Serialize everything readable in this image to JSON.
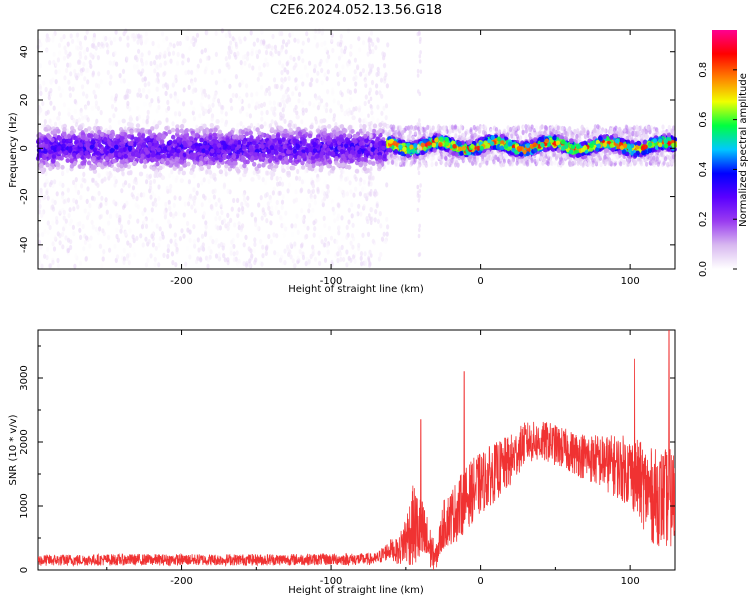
{
  "chart_data": [
    {
      "type": "heatmap",
      "title": "C2E6.2024.052.13.56.G18",
      "xlabel": "Height of straight line (km)",
      "ylabel": "Frequency (Hz)",
      "xlim": [
        -296,
        130
      ],
      "ylim": [
        -50,
        49
      ],
      "x_ticks": [
        -200,
        -100,
        0,
        100
      ],
      "x_tick_labels": [
        "-200",
        "-100",
        "0",
        "100"
      ],
      "y_ticks": [
        -40,
        -20,
        0,
        20,
        40
      ],
      "y_tick_labels": [
        "-40",
        "-20",
        "0",
        "20",
        "40"
      ],
      "colorbar": {
        "label": "Normalized spectral amplitude",
        "range": [
          0,
          0.96
        ],
        "ticks": [
          0,
          0.2,
          0.4,
          0.6,
          0.8
        ],
        "tick_labels": [
          "0.0",
          "0.2",
          "0.4",
          "0.6",
          "0.8"
        ],
        "colormap": [
          "#ffffff",
          "#d8b8f0",
          "#9a3cf0",
          "#5a00ff",
          "#0000ff",
          "#00c8ff",
          "#00ff40",
          "#f0ff00",
          "#ff8000",
          "#ff0000",
          "#ff0090"
        ]
      },
      "regions": [
        {
          "x_range": [
            -296,
            -62
          ],
          "center_hz": 0,
          "core_spread_hz": 12,
          "halo_spread_hz": 49,
          "peak_amplitude": 0.35
        },
        {
          "x_range": [
            -62,
            130
          ],
          "center_hz": 1,
          "core_spread_hz": 4,
          "halo_spread_hz": 8,
          "peak_amplitude": 0.92
        }
      ],
      "notes_visible": "gap with no signal between about -62 and -45 km outside the center band"
    },
    {
      "type": "line",
      "xlabel": "Height of straight line (km)",
      "ylabel": "SNR (10 * v/v)",
      "xlim": [
        -296,
        130
      ],
      "ylim": [
        0,
        3750
      ],
      "x_ticks": [
        -200,
        -100,
        0,
        100
      ],
      "x_tick_labels": [
        "-200",
        "-100",
        "0",
        "100"
      ],
      "y_ticks": [
        0,
        1000,
        2000,
        3000
      ],
      "y_tick_labels": [
        "0",
        "1000",
        "2000",
        "3000"
      ],
      "line_color": "#f03232",
      "envelope": {
        "x": [
          -296,
          -250,
          -150,
          -70,
          -60,
          -55,
          -45,
          -38,
          -30,
          -25,
          -15,
          -5,
          5,
          20,
          30,
          45,
          60,
          80,
          100,
          115,
          130
        ],
        "mean": [
          150,
          160,
          160,
          170,
          330,
          280,
          700,
          520,
          170,
          700,
          950,
          1250,
          1450,
          1700,
          2000,
          2000,
          1850,
          1700,
          1550,
          1150,
          1100
        ],
        "spread": [
          90,
          90,
          90,
          95,
          160,
          200,
          650,
          550,
          180,
          380,
          500,
          500,
          480,
          420,
          320,
          320,
          330,
          420,
          560,
          750,
          800
        ]
      },
      "peaks": [
        {
          "x": -40,
          "y": 2350
        },
        {
          "x": -11,
          "y": 3100
        },
        {
          "x": 103,
          "y": 3300
        },
        {
          "x": 126,
          "y": 3750
        }
      ]
    }
  ]
}
